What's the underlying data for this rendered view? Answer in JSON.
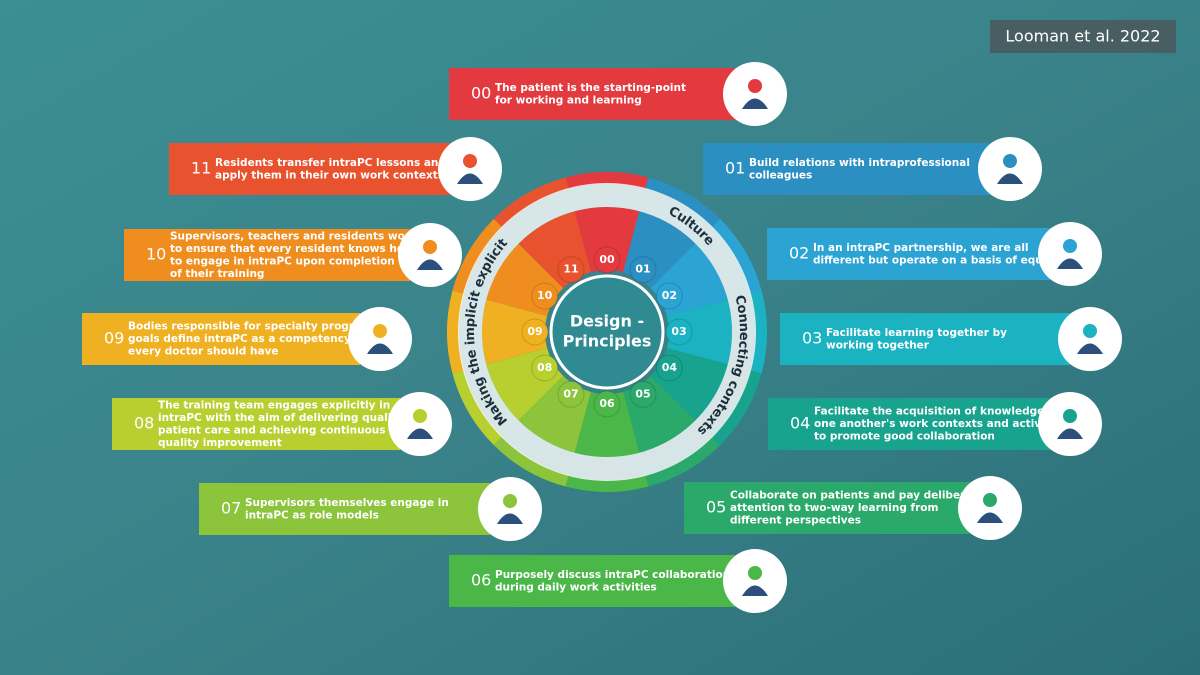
{
  "citation": "Looman et al. 2022",
  "center": {
    "lines": [
      "Design -",
      "Principles"
    ]
  },
  "ring_labels": [
    "Culture",
    "Connecting contexts",
    "Making the implicit explicit"
  ],
  "principles": [
    {
      "number": "00",
      "lines": [
        "The patient is the starting-point",
        "for working and learning"
      ]
    },
    {
      "number": "01",
      "lines": [
        "Build relations with intraprofessional",
        "colleagues"
      ]
    },
    {
      "number": "02",
      "lines": [
        "In an intraPC partnership, we are all",
        "different but operate on a basis of equity"
      ]
    },
    {
      "number": "03",
      "lines": [
        "Facilitate learning together by",
        "working together"
      ]
    },
    {
      "number": "04",
      "lines": [
        "Facilitate the acquisition of knowledge of",
        "one another's work contexts and activities",
        "to promote good collaboration"
      ]
    },
    {
      "number": "05",
      "lines": [
        "Collaborate on patients and pay deliberate",
        "attention to two-way learning from",
        "different perspectives"
      ]
    },
    {
      "number": "06",
      "lines": [
        "Purposely discuss intraPC collaboration",
        "during daily work activities"
      ]
    },
    {
      "number": "07",
      "lines": [
        "Supervisors themselves engage in",
        "intraPC as role models"
      ]
    },
    {
      "number": "08",
      "lines": [
        "The training team engages explicitly in",
        "intraPC with the aim of delivering quality",
        "patient care and achieving continuous",
        "quality improvement"
      ]
    },
    {
      "number": "09",
      "lines": [
        "Bodies responsible for specialty program",
        "goals define intraPC as a competency that",
        "every doctor should have"
      ]
    },
    {
      "number": "10",
      "lines": [
        "Supervisors, teachers and residents work",
        "to ensure that every resident knows how",
        "to engage in intraPC upon completion",
        "of their training"
      ]
    },
    {
      "number": "11",
      "lines": [
        "Residents transfer intraPC lessons and",
        "apply them in their own work contexts"
      ]
    }
  ]
}
